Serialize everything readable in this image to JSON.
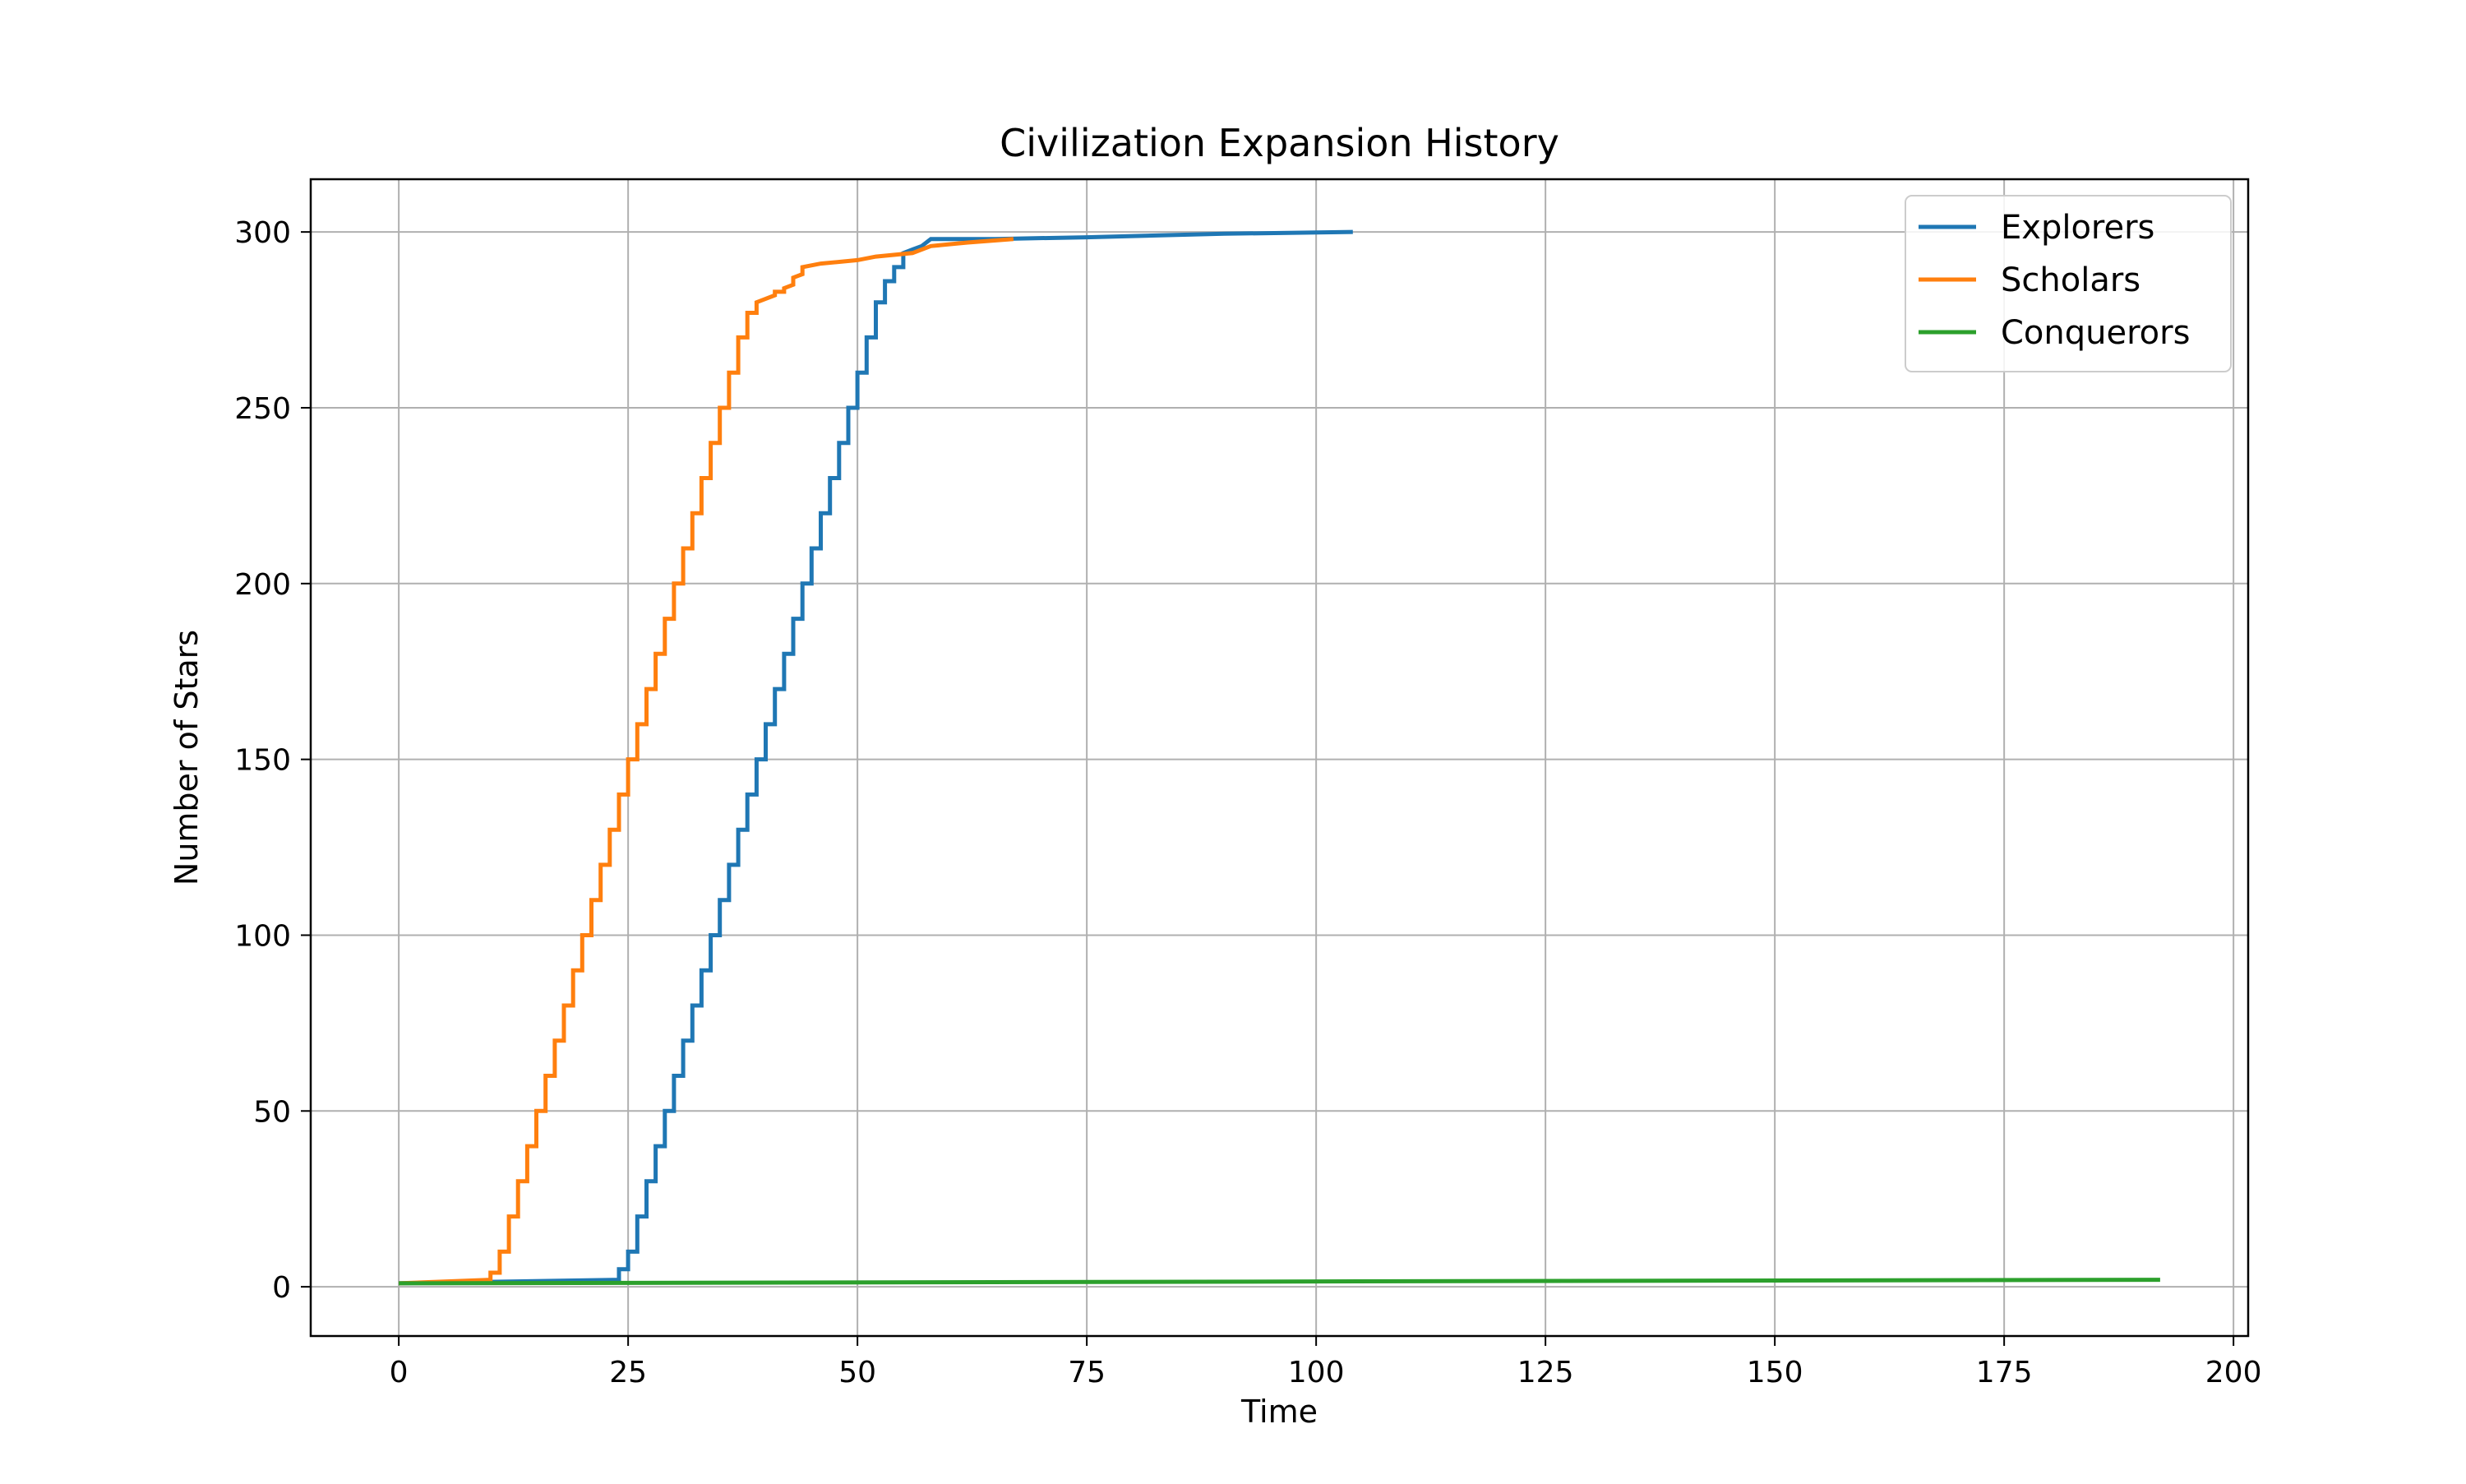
{
  "chart_data": {
    "type": "line",
    "title": "Civilization Expansion History",
    "xlabel": "Time",
    "ylabel": "Number of Stars",
    "xlim": [
      -9.6,
      201.6
    ],
    "ylim": [
      -14,
      315
    ],
    "xticks": [
      0,
      25,
      50,
      75,
      100,
      125,
      150,
      175,
      200
    ],
    "yticks": [
      0,
      50,
      100,
      150,
      200,
      250,
      300
    ],
    "grid": true,
    "legend_position": "top-right",
    "series": [
      {
        "name": "Explorers",
        "color": "#1f77b4",
        "points": [
          [
            0,
            1
          ],
          [
            24,
            2
          ],
          [
            24,
            5
          ],
          [
            25,
            5
          ],
          [
            25,
            10
          ],
          [
            26,
            10
          ],
          [
            26,
            20
          ],
          [
            27,
            20
          ],
          [
            27,
            30
          ],
          [
            28,
            30
          ],
          [
            28,
            40
          ],
          [
            29,
            40
          ],
          [
            29,
            50
          ],
          [
            30,
            50
          ],
          [
            30,
            60
          ],
          [
            31,
            60
          ],
          [
            31,
            70
          ],
          [
            32,
            70
          ],
          [
            32,
            80
          ],
          [
            33,
            80
          ],
          [
            33,
            90
          ],
          [
            34,
            90
          ],
          [
            34,
            100
          ],
          [
            35,
            100
          ],
          [
            35,
            110
          ],
          [
            36,
            110
          ],
          [
            36,
            120
          ],
          [
            37,
            120
          ],
          [
            37,
            130
          ],
          [
            38,
            130
          ],
          [
            38,
            140
          ],
          [
            39,
            140
          ],
          [
            39,
            150
          ],
          [
            40,
            150
          ],
          [
            40,
            160
          ],
          [
            41,
            160
          ],
          [
            41,
            170
          ],
          [
            42,
            170
          ],
          [
            42,
            180
          ],
          [
            43,
            180
          ],
          [
            43,
            190
          ],
          [
            44,
            190
          ],
          [
            44,
            200
          ],
          [
            45,
            200
          ],
          [
            45,
            210
          ],
          [
            46,
            210
          ],
          [
            46,
            220
          ],
          [
            47,
            220
          ],
          [
            47,
            230
          ],
          [
            48,
            230
          ],
          [
            48,
            240
          ],
          [
            49,
            240
          ],
          [
            49,
            250
          ],
          [
            50,
            250
          ],
          [
            50,
            260
          ],
          [
            51,
            260
          ],
          [
            51,
            270
          ],
          [
            52,
            270
          ],
          [
            52,
            280
          ],
          [
            53,
            280
          ],
          [
            53,
            286
          ],
          [
            54,
            286
          ],
          [
            54,
            290
          ],
          [
            55,
            290
          ],
          [
            55,
            294
          ],
          [
            56,
            295
          ],
          [
            57,
            296
          ],
          [
            58,
            298
          ],
          [
            65,
            298
          ],
          [
            75,
            298.5
          ],
          [
            90,
            299.5
          ],
          [
            104,
            300
          ]
        ]
      },
      {
        "name": "Scholars",
        "color": "#ff7f0e",
        "points": [
          [
            0,
            1
          ],
          [
            10,
            2
          ],
          [
            10,
            4
          ],
          [
            11,
            4
          ],
          [
            11,
            10
          ],
          [
            12,
            10
          ],
          [
            12,
            20
          ],
          [
            13,
            20
          ],
          [
            13,
            30
          ],
          [
            14,
            30
          ],
          [
            14,
            40
          ],
          [
            15,
            40
          ],
          [
            15,
            50
          ],
          [
            16,
            50
          ],
          [
            16,
            60
          ],
          [
            17,
            60
          ],
          [
            17,
            70
          ],
          [
            18,
            70
          ],
          [
            18,
            80
          ],
          [
            19,
            80
          ],
          [
            19,
            90
          ],
          [
            20,
            90
          ],
          [
            20,
            100
          ],
          [
            21,
            100
          ],
          [
            21,
            110
          ],
          [
            22,
            110
          ],
          [
            22,
            120
          ],
          [
            23,
            120
          ],
          [
            23,
            130
          ],
          [
            24,
            130
          ],
          [
            24,
            140
          ],
          [
            25,
            140
          ],
          [
            25,
            150
          ],
          [
            26,
            150
          ],
          [
            26,
            160
          ],
          [
            27,
            160
          ],
          [
            27,
            170
          ],
          [
            28,
            170
          ],
          [
            28,
            180
          ],
          [
            29,
            180
          ],
          [
            29,
            190
          ],
          [
            30,
            190
          ],
          [
            30,
            200
          ],
          [
            31,
            200
          ],
          [
            31,
            210
          ],
          [
            32,
            210
          ],
          [
            32,
            220
          ],
          [
            33,
            220
          ],
          [
            33,
            230
          ],
          [
            34,
            230
          ],
          [
            34,
            240
          ],
          [
            35,
            240
          ],
          [
            35,
            250
          ],
          [
            36,
            250
          ],
          [
            36,
            260
          ],
          [
            37,
            260
          ],
          [
            37,
            270
          ],
          [
            38,
            270
          ],
          [
            38,
            277
          ],
          [
            39,
            277
          ],
          [
            39,
            280
          ],
          [
            40,
            281
          ],
          [
            41,
            282
          ],
          [
            41,
            283
          ],
          [
            42,
            283
          ],
          [
            42,
            284
          ],
          [
            43,
            285
          ],
          [
            43,
            287
          ],
          [
            44,
            288
          ],
          [
            44,
            290
          ],
          [
            46,
            291
          ],
          [
            50,
            292
          ],
          [
            52,
            293
          ],
          [
            56,
            294
          ],
          [
            58,
            296
          ],
          [
            62,
            297
          ],
          [
            67,
            298
          ]
        ]
      },
      {
        "name": "Conquerors",
        "color": "#2ca02c",
        "points": [
          [
            0,
            1
          ],
          [
            192,
            2
          ]
        ]
      }
    ]
  }
}
